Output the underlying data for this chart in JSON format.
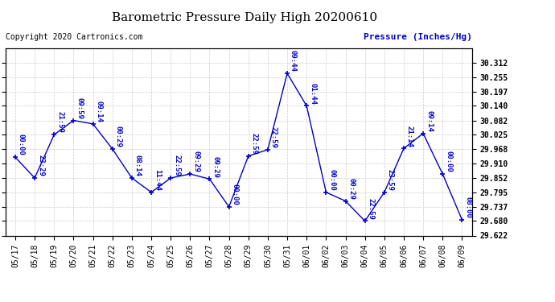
{
  "title": "Barometric Pressure Daily High 20200610",
  "ylabel": "Pressure (Inches/Hg)",
  "copyright": "Copyright 2020 Cartronics.com",
  "background_color": "#ffffff",
  "line_color": "#0000cc",
  "grid_color": "#cccccc",
  "x_labels": [
    "05/17",
    "05/18",
    "05/19",
    "05/20",
    "05/21",
    "05/22",
    "05/23",
    "05/24",
    "05/25",
    "05/26",
    "05/27",
    "05/28",
    "05/29",
    "05/30",
    "05/31",
    "06/01",
    "06/02",
    "06/03",
    "06/04",
    "06/05",
    "06/06",
    "06/07",
    "06/08",
    "06/09"
  ],
  "y_values": [
    29.935,
    29.852,
    30.025,
    30.082,
    30.068,
    29.968,
    29.852,
    29.795,
    29.852,
    29.868,
    29.848,
    29.737,
    29.94,
    29.965,
    30.27,
    30.14,
    29.795,
    29.76,
    29.68,
    29.795,
    29.97,
    30.03,
    29.868,
    29.685
  ],
  "annotations": [
    "00:00",
    "23:29",
    "21:59",
    "09:59",
    "09:14",
    "00:29",
    "08:14",
    "11:44",
    "22:59",
    "09:29",
    "09:29",
    "00:00",
    "22:59",
    "22:59",
    "09:44",
    "01:44",
    "00:00",
    "00:29",
    "22:59",
    "23:59",
    "21:14",
    "09:14",
    "00:00",
    "08:00"
  ],
  "ylim_min": 29.622,
  "ylim_max": 30.37,
  "yticks": [
    29.622,
    29.68,
    29.737,
    29.795,
    29.852,
    29.91,
    29.968,
    30.025,
    30.082,
    30.14,
    30.197,
    30.255,
    30.312
  ],
  "title_fontsize": 11,
  "tick_fontsize": 7,
  "annotation_fontsize": 6.5,
  "copyright_fontsize": 7,
  "ylabel_fontsize": 8
}
